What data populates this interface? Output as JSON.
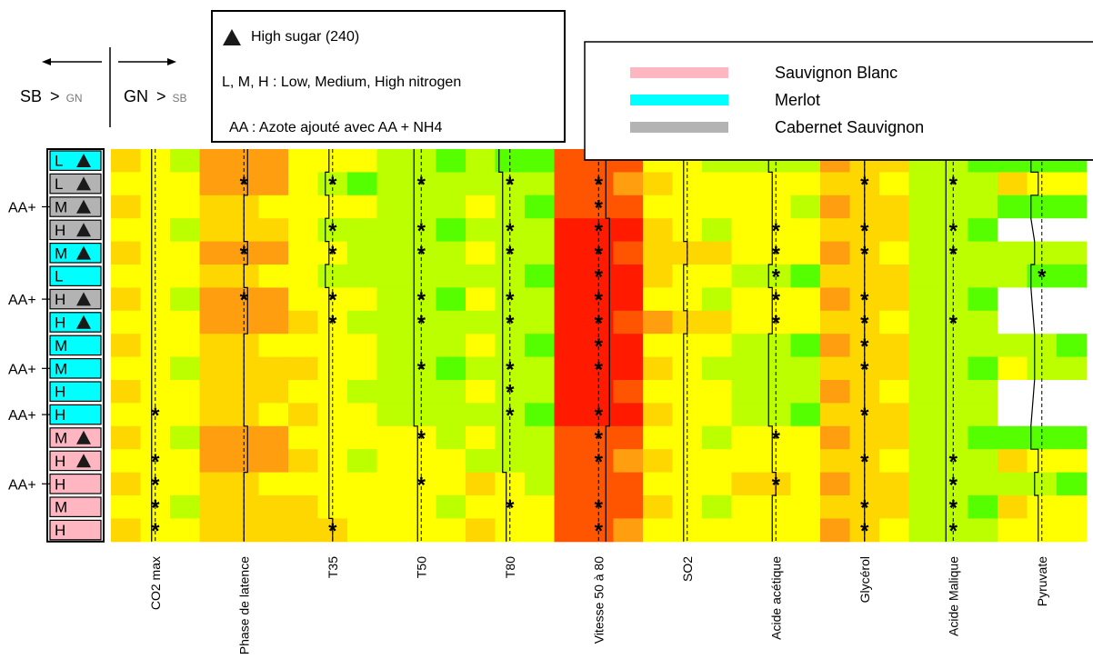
{
  "arrows": {
    "left_label": "SB",
    "left_sub": "GN",
    "right_label": "GN",
    "right_sub": "SB",
    "gt": ">"
  },
  "legend_treat": {
    "high_sugar": "High sugar (240)",
    "nitrogen": "L, M, H : Low, Medium, High nitrogen",
    "aa": "AA : Azote ajouté avec AA + NH4"
  },
  "legend_grape": [
    {
      "name": "Sauvignon Blanc",
      "color": "#ffb6c1"
    },
    {
      "name": "Merlot",
      "color": "#00ffff"
    },
    {
      "name": "Cabernet Sauvignon",
      "color": "#b3b3b3"
    }
  ],
  "colors": {
    "sauvignon": "#ffb6c1",
    "merlot": "#00ffff",
    "cabernet": "#b3b3b3",
    "scale": [
      "#ff1a00",
      "#ff5500",
      "#ff9f10",
      "#ffd700",
      "#ffff00",
      "#bbff00",
      "#55ff00"
    ]
  },
  "chart_data": {
    "type": "heatmap",
    "columns": [
      "CO2 max",
      "Phase de latence",
      "T35",
      "T50",
      "T80",
      "Vitesse 50 à 80",
      "SO2",
      "Acide acétique",
      "Glycérol",
      "Acide Malique",
      "Pyruvate"
    ],
    "rows": [
      {
        "label": "L",
        "aa": "",
        "sugar": true,
        "grape": "merlot"
      },
      {
        "label": "L",
        "aa": "",
        "sugar": true,
        "grape": "cabernet"
      },
      {
        "label": "M",
        "aa": "AA+",
        "sugar": true,
        "grape": "cabernet"
      },
      {
        "label": "H",
        "aa": "",
        "sugar": true,
        "grape": "cabernet"
      },
      {
        "label": "M",
        "aa": "",
        "sugar": true,
        "grape": "merlot"
      },
      {
        "label": "L",
        "aa": "",
        "sugar": false,
        "grape": "merlot"
      },
      {
        "label": "H",
        "aa": "AA+",
        "sugar": true,
        "grape": "cabernet"
      },
      {
        "label": "H",
        "aa": "",
        "sugar": true,
        "grape": "merlot"
      },
      {
        "label": "M",
        "aa": "",
        "sugar": false,
        "grape": "merlot"
      },
      {
        "label": "M",
        "aa": "AA+",
        "sugar": false,
        "grape": "merlot"
      },
      {
        "label": "H",
        "aa": "",
        "sugar": false,
        "grape": "merlot"
      },
      {
        "label": "H",
        "aa": "AA+",
        "sugar": false,
        "grape": "merlot"
      },
      {
        "label": "M",
        "aa": "",
        "sugar": true,
        "grape": "sauvignon"
      },
      {
        "label": "H",
        "aa": "",
        "sugar": true,
        "grape": "sauvignon"
      },
      {
        "label": "H",
        "aa": "AA+",
        "sugar": false,
        "grape": "sauvignon"
      },
      {
        "label": "M",
        "aa": "",
        "sugar": false,
        "grape": "sauvignon"
      },
      {
        "label": "H",
        "aa": "",
        "sugar": false,
        "grape": "sauvignon"
      }
    ],
    "values": [
      [
        4,
        2,
        4,
        5,
        6,
        1,
        4,
        5,
        3,
        5,
        6
      ],
      [
        4,
        2,
        5,
        5,
        5,
        1,
        4,
        4,
        3,
        5,
        4
      ],
      [
        4,
        3,
        4,
        5,
        5,
        1,
        4,
        4,
        3,
        5,
        6
      ],
      [
        4,
        3,
        5,
        5,
        5,
        0,
        4,
        4,
        3,
        5,
        null
      ],
      [
        4,
        2,
        4,
        5,
        5,
        0,
        3,
        4,
        3,
        5,
        5
      ],
      [
        4,
        3,
        5,
        5,
        5,
        0,
        4,
        5,
        3,
        5,
        6
      ],
      [
        4,
        2,
        4,
        5,
        5,
        0,
        4,
        4,
        3,
        5,
        null
      ],
      [
        4,
        2,
        4,
        5,
        5,
        0,
        3,
        4,
        3,
        5,
        null
      ],
      [
        4,
        3,
        4,
        5,
        5,
        0,
        4,
        5,
        3,
        5,
        5
      ],
      [
        4,
        3,
        4,
        5,
        5,
        0,
        4,
        5,
        3,
        5,
        5
      ],
      [
        4,
        3,
        4,
        5,
        5,
        0,
        4,
        5,
        3,
        5,
        null
      ],
      [
        4,
        3,
        4,
        5,
        5,
        0,
        4,
        5,
        3,
        5,
        null
      ],
      [
        4,
        2,
        4,
        4,
        5,
        1,
        4,
        4,
        3,
        5,
        6
      ],
      [
        4,
        2,
        4,
        4,
        5,
        1,
        4,
        4,
        3,
        5,
        4
      ],
      [
        4,
        3,
        4,
        4,
        4,
        1,
        4,
        3,
        3,
        5,
        5
      ],
      [
        4,
        3,
        4,
        4,
        4,
        1,
        4,
        4,
        3,
        5,
        4
      ],
      [
        4,
        3,
        3,
        4,
        4,
        1,
        4,
        4,
        3,
        5,
        4
      ]
    ],
    "significant": [
      [
        0,
        0,
        0,
        0,
        0,
        0,
        0,
        0,
        0,
        0,
        0
      ],
      [
        0,
        1,
        1,
        1,
        1,
        1,
        0,
        0,
        1,
        1,
        0
      ],
      [
        0,
        0,
        0,
        0,
        0,
        1,
        0,
        0,
        0,
        0,
        0
      ],
      [
        0,
        0,
        1,
        1,
        1,
        1,
        0,
        1,
        1,
        1,
        0
      ],
      [
        0,
        1,
        1,
        1,
        1,
        1,
        0,
        1,
        1,
        1,
        0
      ],
      [
        0,
        0,
        0,
        0,
        0,
        1,
        0,
        1,
        0,
        0,
        1
      ],
      [
        0,
        1,
        1,
        1,
        1,
        1,
        0,
        1,
        1,
        0,
        0
      ],
      [
        0,
        0,
        1,
        1,
        1,
        1,
        0,
        1,
        1,
        1,
        0
      ],
      [
        0,
        0,
        0,
        0,
        0,
        1,
        0,
        0,
        1,
        0,
        0
      ],
      [
        0,
        0,
        0,
        1,
        1,
        1,
        0,
        0,
        1,
        0,
        0
      ],
      [
        0,
        0,
        0,
        0,
        1,
        0,
        0,
        0,
        0,
        0,
        0
      ],
      [
        1,
        0,
        0,
        0,
        1,
        1,
        0,
        0,
        1,
        0,
        0
      ],
      [
        0,
        0,
        0,
        1,
        0,
        1,
        0,
        1,
        0,
        0,
        0
      ],
      [
        1,
        0,
        0,
        0,
        0,
        1,
        0,
        0,
        1,
        1,
        0
      ],
      [
        1,
        0,
        0,
        1,
        0,
        0,
        0,
        1,
        0,
        1,
        0
      ],
      [
        1,
        0,
        0,
        0,
        1,
        1,
        0,
        0,
        1,
        1,
        0
      ],
      [
        1,
        0,
        1,
        0,
        0,
        1,
        0,
        0,
        1,
        1,
        0
      ]
    ],
    "star_symbol": "*",
    "sugar_symbol": "▲"
  }
}
